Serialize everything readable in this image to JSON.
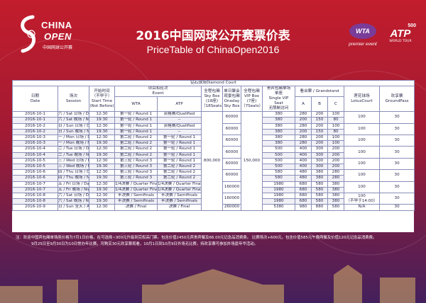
{
  "logo": {
    "line1": "CHINA",
    "line2": "OPEN",
    "line3": "中国网球公开赛"
  },
  "title_cn": "2016中国网球公开赛票价表",
  "title_en": "PriceTable of ChinaOpen2016",
  "wta": {
    "badge": "WTA",
    "sub": "premier event"
  },
  "atp": {
    "tier": "500",
    "name": "ATP",
    "sub": "WORLD TOUR"
  },
  "table": {
    "court": "钻石球场Diamond Court",
    "headers": {
      "date": "日期\nDate",
      "session": "场次\nSession",
      "start": "开始时间\n（不早于）\nStart Time\n(Not Before)",
      "event": "项目和轮次\nEvent",
      "wta": "WTA",
      "atp": "ATP",
      "skybox_all": "全程包厢\nSky Box\n(18座)\n（18Seats）",
      "oneday": "单日聚会\n观景包厢\nOneday\nSky Box",
      "vipbox_all": "全程包厢\nVIP Box\n(7座)\n（7Seats）",
      "vip_seat": "贵宾包厢单场\n单座\nSingle VIP\nSeat\n无限制访问",
      "stand": "看台票 / Grandstand",
      "a": "A",
      "b": "B",
      "c": "C",
      "lotus": "莲花球场\nLotusCourt",
      "ground": "欢享票\nGroundPass"
    },
    "skybox_all_price": "800,000",
    "vipbox_all_price": "150,000",
    "rows": [
      {
        "date": "2016-10-1",
        "session": "六 / Sat  日场 / Day",
        "start": "12:30",
        "wta": "第一轮 / Round 1",
        "atp": "资格赛/Qualified",
        "oneday": "60000",
        "vip": "380",
        "a": "280",
        "b": "200",
        "c": "100",
        "lotus": "100",
        "ground": "30"
      },
      {
        "date": "2016-10-1",
        "session": "六 / Sat  晚场 / Night",
        "start": "19:30",
        "wta": "第一轮 / Round 1",
        "atp": "--",
        "oneday": "",
        "vip": "380",
        "a": "200",
        "b": "150",
        "c": "80",
        "lotus": "",
        "ground": ""
      },
      {
        "date": "2016-10-2",
        "session": "日 / Sun  日场 / Day",
        "start": "12:30",
        "wta": "第一轮 / Round 1",
        "atp": "资格赛/Qualified",
        "oneday": "60000",
        "vip": "380",
        "a": "280",
        "b": "200",
        "c": "100",
        "lotus": "100",
        "ground": "30"
      },
      {
        "date": "2016-10-2",
        "session": "日 / Sun  晚场 / Night",
        "start": "19:30",
        "wta": "第一轮 / Round 1",
        "atp": "--",
        "oneday": "",
        "vip": "380",
        "a": "200",
        "b": "150",
        "c": "80",
        "lotus": "",
        "ground": ""
      },
      {
        "date": "2016-10-3",
        "session": "一 / Mon  日场 / Day",
        "start": "12:30",
        "wta": "第二轮 / Round 2",
        "atp": "第一轮 / Round 1",
        "oneday": "60000",
        "vip": "380",
        "a": "280",
        "b": "200",
        "c": "100",
        "lotus": "100",
        "ground": "30"
      },
      {
        "date": "2016-10-3",
        "session": "一 / Mon  晚场 / Night",
        "start": "19:30",
        "wta": "第二轮 / Round 2",
        "atp": "第一轮 / Round 1",
        "oneday": "",
        "vip": "380",
        "a": "280",
        "b": "200",
        "c": "100",
        "lotus": "",
        "ground": ""
      },
      {
        "date": "2016-10-4",
        "session": "二 / Tue  日场 / Day",
        "start": "12:30",
        "wta": "第二轮 / Round 2",
        "atp": "第一轮 / Round 1",
        "oneday": "60000",
        "vip": "500",
        "a": "400",
        "b": "300",
        "c": "200",
        "lotus": "100",
        "ground": "30"
      },
      {
        "date": "2016-10-4",
        "session": "二 / Tue  晚场 / Night",
        "start": "19:30",
        "wta": "第二轮 / Round 2",
        "atp": "第一轮 / Round 1",
        "oneday": "",
        "vip": "500",
        "a": "400",
        "b": "300",
        "c": "200",
        "lotus": "",
        "ground": ""
      },
      {
        "date": "2016-10-5",
        "session": "三 / Wed  日场 / Day",
        "start": "12:30",
        "wta": "第三轮 / Round 3",
        "atp": "第一轮 / Round 1",
        "oneday": "60000",
        "vip": "500",
        "a": "400",
        "b": "300",
        "c": "200",
        "lotus": "100",
        "ground": "30"
      },
      {
        "date": "2016-10-5",
        "session": "三 / Wed  晚场 / Night",
        "start": "19:30",
        "wta": "第三轮 / Round 3",
        "atp": "第二轮 / Round 2",
        "oneday": "",
        "vip": "500",
        "a": "400",
        "b": "300",
        "c": "200",
        "lotus": "",
        "ground": ""
      },
      {
        "date": "2016-10-6",
        "session": "四 / Thu  日场 / Day",
        "start": "12:30",
        "wta": "第三轮 / Round 3",
        "atp": "第二轮 / Round 2",
        "oneday": "60000",
        "vip": "580",
        "a": "480",
        "b": "380",
        "c": "280",
        "lotus": "100",
        "ground": "30"
      },
      {
        "date": "2016-10-6",
        "session": "四 / Thu  晚场 / Night",
        "start": "19:30",
        "wta": "第三轮 / Round 3",
        "atp": "第二轮 / Round 2",
        "oneday": "",
        "vip": "580",
        "a": "480",
        "b": "380",
        "c": "280",
        "lotus": "",
        "ground": ""
      },
      {
        "date": "2016-10-7",
        "session": "五 / Fri  日场 / Day",
        "start": "12:30",
        "wta": "1/4决赛 / Quarter Finals",
        "atp": "1/4决赛 / Quarter Finals",
        "oneday": "160000",
        "vip": "1980",
        "a": "680",
        "b": "580",
        "c": "380",
        "lotus": "100",
        "ground": "30"
      },
      {
        "date": "2016-10-7",
        "session": "五 / Fri  晚场 / Night",
        "start": "19:30",
        "wta": "1/4决赛 / Quarter Finals",
        "atp": "1/4决赛 / Quarter Finals",
        "oneday": "",
        "vip": "1980",
        "a": "680",
        "b": "580",
        "c": "380",
        "lotus": "",
        "ground": ""
      },
      {
        "date": "2016-10-8",
        "session": "六 / Sat  日场 / Day",
        "start": "12:30",
        "wta": "半决赛 / Semifinals",
        "atp": "半决赛 / Semifinals",
        "oneday": "160000",
        "vip": "1980",
        "a": "680",
        "b": "580",
        "c": "380",
        "lotus": "100\n（不早于14:00）",
        "ground": "30"
      },
      {
        "date": "2016-10-8",
        "session": "六 / Sat  晚场 / Night",
        "start": "19:30",
        "wta": "半决赛 / Semifinals",
        "atp": "半决赛 / Semifinals",
        "oneday": "",
        "vip": "1980",
        "a": "680",
        "b": "580",
        "c": "380",
        "lotus": "",
        "ground": ""
      },
      {
        "date": "2016-10-9",
        "session": "日 / Sun  全天 / AllDay",
        "start": "12:30",
        "wta": "决赛 / Final",
        "atp": "决赛 / Final",
        "oneday": "260000",
        "vip": "5380",
        "a": "980",
        "b": "880",
        "c": "580",
        "lotus": "N/A",
        "ground": "30"
      }
    ]
  },
  "notes": {
    "line1": "注：欢迎中国宾包厢单场座价格为7月1日价格，在可选择~300元升级到完权高门票。包含价值2450元宾贵宾餐及66.00元记念品消费费。 比赛场次+600元，包含价值585元午晚两餐及价值120元记念品消费费。",
    "line2": "9月25日至9月30日为10日常办年比赛。可购买30元欢享票观看，10月1日到10月9日外场无比赛，持欢享票可参加外场嘉年华活动。"
  }
}
